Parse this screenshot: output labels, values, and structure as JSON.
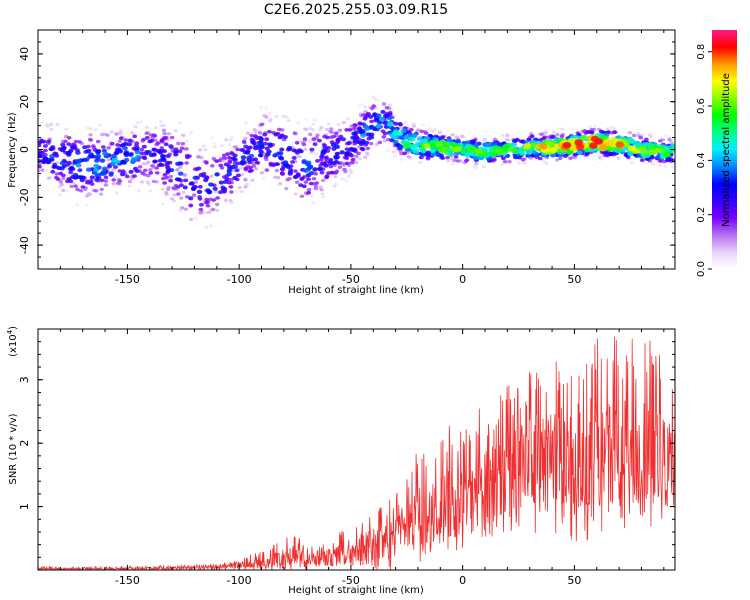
{
  "title": "C2E6.2025.255.03.09.R15",
  "chart_data": [
    {
      "type": "heatmap",
      "name": "spectrogram",
      "xlabel": "Height of straight line (km)",
      "ylabel": "Frequency (Hz)",
      "xlim": [
        -190,
        95
      ],
      "ylim": [
        -50,
        50
      ],
      "xticks": [
        -150,
        -100,
        -50,
        0,
        50
      ],
      "yticks": [
        -40,
        -20,
        0,
        20,
        40
      ],
      "colorbar": {
        "label": "Normalized spectral amplitude",
        "range": [
          0.0,
          0.88
        ],
        "ticks": [
          0.0,
          0.2,
          0.4,
          0.6,
          0.8
        ],
        "colors": [
          "#ffffff",
          "#e8d2fa",
          "#b46ff0",
          "#7a00ff",
          "#3300ff",
          "#0000ff",
          "#0088ff",
          "#00eeff",
          "#00ff88",
          "#00ff00",
          "#88ff00",
          "#ffff00",
          "#ff9900",
          "#ff0000",
          "#ff1a88"
        ]
      },
      "ridge": {
        "heights": [
          -190,
          -175,
          -160,
          -150,
          -140,
          -130,
          -122,
          -115,
          -100,
          -90,
          -80,
          -70,
          -60,
          -50,
          -45,
          -40,
          -35,
          -30,
          -25,
          -20,
          -10,
          0,
          10,
          20,
          30,
          40,
          50,
          60,
          70,
          80,
          95
        ],
        "frequency_hz": [
          0,
          -6,
          -6,
          -3,
          -2,
          -6,
          -12,
          -16,
          -6,
          2,
          -2,
          -8,
          -3,
          2,
          6,
          10,
          12,
          7,
          3,
          2,
          1,
          0,
          -1,
          0,
          1,
          1,
          2,
          3,
          2,
          0,
          -1
        ],
        "spread_hz": [
          9,
          11,
          10,
          9,
          10,
          13,
          14,
          12,
          10,
          10,
          12,
          13,
          11,
          9,
          8,
          8,
          8,
          6,
          5,
          5,
          4,
          4,
          4,
          4,
          4,
          4,
          4,
          4,
          4,
          4,
          4
        ],
        "peak_amplitude": [
          0.3,
          0.35,
          0.38,
          0.38,
          0.3,
          0.3,
          0.3,
          0.3,
          0.3,
          0.3,
          0.32,
          0.32,
          0.3,
          0.3,
          0.35,
          0.38,
          0.38,
          0.45,
          0.55,
          0.55,
          0.6,
          0.55,
          0.55,
          0.55,
          0.6,
          0.7,
          0.75,
          0.8,
          0.7,
          0.6,
          0.55
        ]
      }
    },
    {
      "type": "line",
      "name": "snr",
      "xlabel": "Height of straight line (km)",
      "ylabel": "SNR (10 * v/v)",
      "y_exponent_label": "(x10",
      "y_exponent": "4",
      "xlim": [
        -190,
        95
      ],
      "ylim": [
        0,
        3.8
      ],
      "xticks": [
        -150,
        -100,
        -50,
        0,
        50
      ],
      "yticks": [
        1,
        2,
        3
      ],
      "color": "#f03030",
      "envelope": {
        "x": [
          -190,
          -160,
          -130,
          -110,
          -100,
          -90,
          -80,
          -75,
          -70,
          -65,
          -60,
          -55,
          -50,
          -45,
          -40,
          -35,
          -30,
          -25,
          -20,
          -15,
          -10,
          0,
          10,
          20,
          30,
          40,
          50,
          60,
          70,
          80,
          90,
          95
        ],
        "mean": [
          0.02,
          0.02,
          0.03,
          0.05,
          0.08,
          0.1,
          0.2,
          0.25,
          0.18,
          0.15,
          0.2,
          0.25,
          0.3,
          0.35,
          0.4,
          0.45,
          0.55,
          0.7,
          0.8,
          0.9,
          1.0,
          1.1,
          1.3,
          1.5,
          1.7,
          1.8,
          1.8,
          1.85,
          1.85,
          1.8,
          1.7,
          1.6
        ],
        "max": [
          0.05,
          0.06,
          0.08,
          0.1,
          0.2,
          0.3,
          0.5,
          0.55,
          0.45,
          0.35,
          0.5,
          0.6,
          0.75,
          0.8,
          0.9,
          1.05,
          1.2,
          1.5,
          2.0,
          2.0,
          2.2,
          2.4,
          2.6,
          2.9,
          3.2,
          3.3,
          3.5,
          3.7,
          3.7,
          3.7,
          3.6,
          3.5
        ],
        "min": [
          0.0,
          0.0,
          0.0,
          0.0,
          0.0,
          0.0,
          0.0,
          0.0,
          0.0,
          0.0,
          0.0,
          0.0,
          0.0,
          0.0,
          0.0,
          0.0,
          0.0,
          0.1,
          0.1,
          0.2,
          0.3,
          0.3,
          0.4,
          0.6,
          0.6,
          0.5,
          0.4,
          0.5,
          0.6,
          0.6,
          0.6,
          0.7
        ]
      }
    }
  ]
}
